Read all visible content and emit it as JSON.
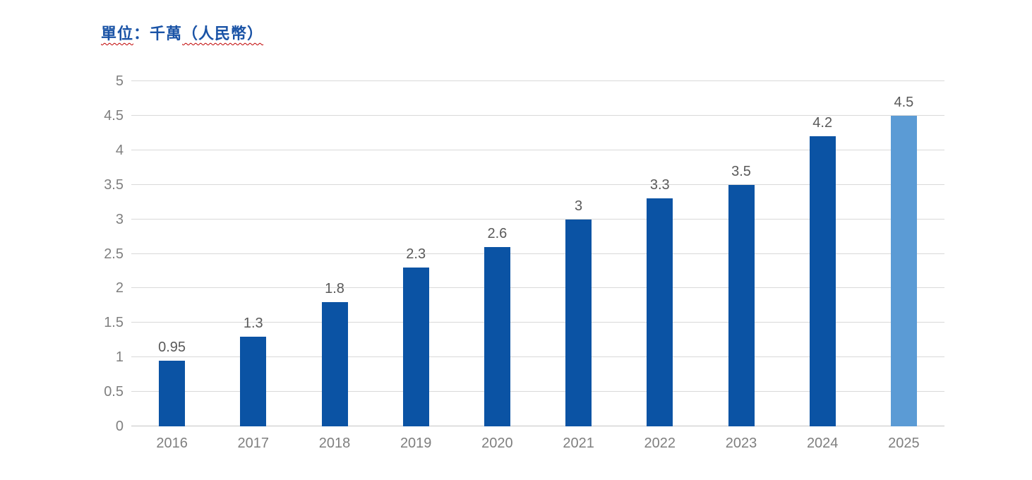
{
  "title": {
    "part1": "單位",
    "part2": "：千萬",
    "part3": "（人民幣）",
    "full": "單位：千萬（人民幣）"
  },
  "colors": {
    "title_text": "#1A53A6",
    "title_wavy_underline": "#C00000",
    "bar_default": "#0B53A4",
    "bar_highlight": "#5B9BD5",
    "gridline": "#D9D9D9",
    "axis_line": "#C6C6C6",
    "y_tick_label": "#7F7F7F",
    "x_tick_label": "#7F7F7F",
    "data_label": "#595959"
  },
  "chart_data": {
    "type": "bar",
    "title": "單位：千萬（人民幣）",
    "categories": [
      "2016",
      "2017",
      "2018",
      "2019",
      "2020",
      "2021",
      "2022",
      "2023",
      "2024",
      "2025"
    ],
    "values": [
      0.95,
      1.3,
      1.8,
      2.3,
      2.6,
      3,
      3.3,
      3.5,
      4.2,
      4.5
    ],
    "data_labels": [
      "0.95",
      "1.3",
      "1.8",
      "2.3",
      "2.6",
      "3",
      "3.3",
      "3.5",
      "4.2",
      "4.5"
    ],
    "highlight_index": 9,
    "xlabel": "",
    "ylabel": "",
    "ylim": [
      0,
      5
    ],
    "ytick_step": 0.5,
    "yticks": [
      "0",
      "0.5",
      "1",
      "1.5",
      "2",
      "2.5",
      "3",
      "3.5",
      "4",
      "4.5",
      "5"
    ],
    "grid": true,
    "legend": false
  }
}
